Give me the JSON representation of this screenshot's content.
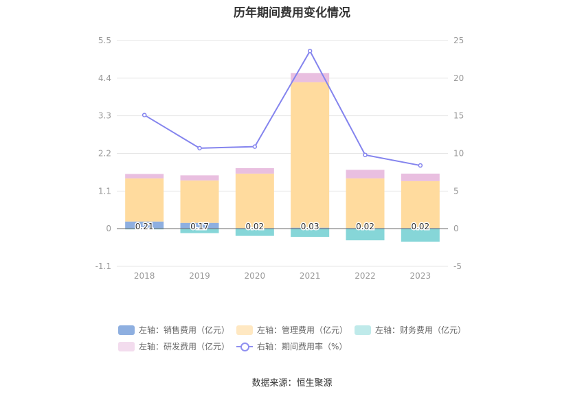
{
  "chart_data": {
    "type": "bar",
    "title": "历年期间费用变化情况",
    "categories": [
      "2018",
      "2019",
      "2020",
      "2021",
      "2022",
      "2023"
    ],
    "left_axis": {
      "ticks": [
        "5.5",
        "4.4",
        "3.3",
        "2.2",
        "1.1",
        "0",
        "-1.1"
      ],
      "ylim": [
        -1.1,
        5.5
      ]
    },
    "right_axis": {
      "ticks": [
        "25",
        "20",
        "15",
        "10",
        "5",
        "0",
        "-5"
      ],
      "ylim": [
        -5,
        25
      ]
    },
    "series": [
      {
        "name": "左轴：销售费用（亿元）",
        "axis": "left",
        "type": "bar-stack",
        "color": "#8eafe0",
        "values": [
          0.21,
          0.17,
          0.02,
          0.03,
          0.02,
          0.02
        ],
        "labels": [
          "0.21",
          "0.17",
          "0.02",
          "0.03",
          "0.02",
          "0.02"
        ]
      },
      {
        "name": "左轴：管理费用（亿元）",
        "axis": "left",
        "type": "bar-stack",
        "color": "#ffdb9e",
        "values": [
          1.26,
          1.24,
          1.59,
          4.25,
          1.45,
          1.37
        ]
      },
      {
        "name": "左轴：财务费用（亿元）",
        "axis": "left",
        "type": "bar-stack",
        "color": "#86d6d8",
        "values": [
          -0.02,
          -0.13,
          -0.21,
          -0.24,
          -0.34,
          -0.38
        ]
      },
      {
        "name": "左轴：研发费用（亿元）",
        "axis": "left",
        "type": "bar-stack",
        "color": "#e9bfe0",
        "values": [
          0.13,
          0.15,
          0.16,
          0.27,
          0.25,
          0.22
        ]
      },
      {
        "name": "右轴：期间费用率（%）",
        "axis": "right",
        "type": "line",
        "color": "#8484ee",
        "values": [
          15.1,
          10.7,
          10.9,
          23.6,
          9.8,
          8.4
        ]
      }
    ],
    "legend": [
      {
        "label": "左轴：销售费用（亿元）",
        "color": "#8eafe0",
        "kind": "box"
      },
      {
        "label": "左轴：管理费用（亿元）",
        "color": "#ffe8c2",
        "kind": "box"
      },
      {
        "label": "左轴：财务费用（亿元）",
        "color": "#bfeaea",
        "kind": "box"
      },
      {
        "label": "左轴：研发费用（亿元）",
        "color": "#f3dcee",
        "kind": "box"
      },
      {
        "label": "右轴：期间费用率（%）",
        "color": "#8484ee",
        "kind": "line"
      }
    ],
    "legend_position": "bottom",
    "grid": true
  },
  "source": "数据来源：恒生聚源"
}
